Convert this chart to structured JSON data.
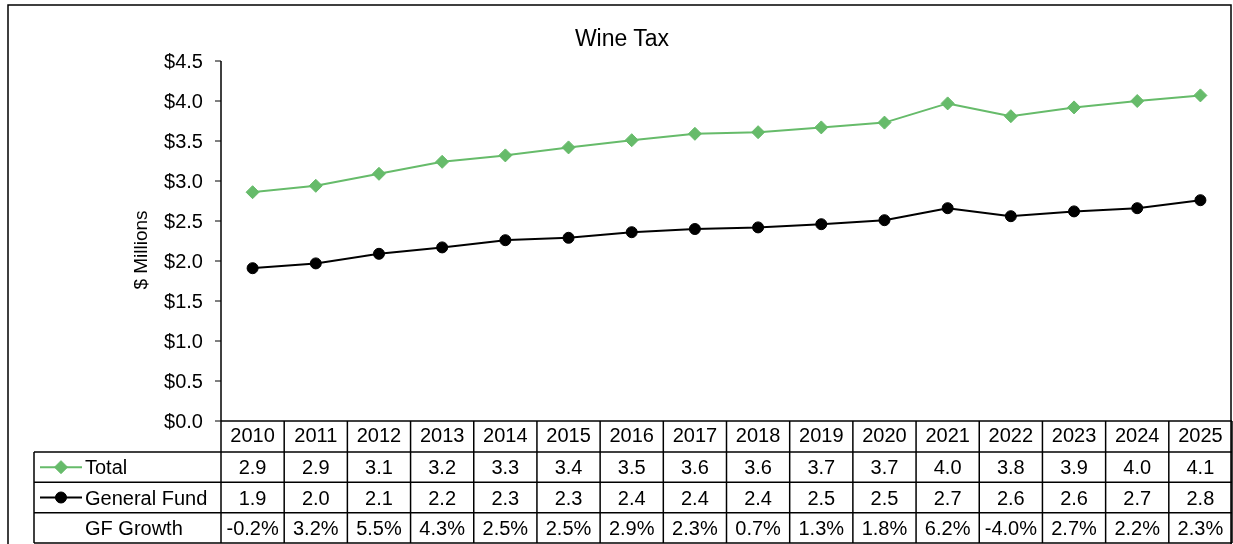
{
  "chart_data": {
    "type": "line",
    "title": "Wine Tax",
    "ylabel": "$ Millions",
    "categories": [
      "2010",
      "2011",
      "2012",
      "2013",
      "2014",
      "2015",
      "2016",
      "2017",
      "2018",
      "2019",
      "2020",
      "2021",
      "2022",
      "2023",
      "2024",
      "2025"
    ],
    "series": [
      {
        "name": "Total",
        "color": "#66bb6a",
        "marker": "diamond",
        "values": [
          2.86,
          2.94,
          3.09,
          3.24,
          3.32,
          3.42,
          3.51,
          3.59,
          3.61,
          3.67,
          3.73,
          3.97,
          3.81,
          3.92,
          4.0,
          4.07
        ],
        "value_labels": [
          "2.9",
          "2.9",
          "3.1",
          "3.2",
          "3.3",
          "3.4",
          "3.5",
          "3.6",
          "3.6",
          "3.7",
          "3.7",
          "4.0",
          "3.8",
          "3.9",
          "4.0",
          "4.1"
        ]
      },
      {
        "name": "General Fund",
        "color": "#000000",
        "marker": "circle",
        "values": [
          1.91,
          1.97,
          2.09,
          2.17,
          2.26,
          2.29,
          2.36,
          2.4,
          2.42,
          2.46,
          2.51,
          2.66,
          2.56,
          2.62,
          2.66,
          2.76
        ],
        "value_labels": [
          "1.9",
          "2.0",
          "2.1",
          "2.2",
          "2.3",
          "2.3",
          "2.4",
          "2.4",
          "2.4",
          "2.5",
          "2.5",
          "2.7",
          "2.6",
          "2.6",
          "2.7",
          "2.8"
        ]
      }
    ],
    "annotations": [
      "GF Growth",
      "-0.2%",
      "3.2%",
      "5.5%",
      "4.3%",
      "2.5%",
      "2.5%",
      "2.9%",
      "2.3%",
      "0.7%",
      "1.3%",
      "1.8%",
      "6.2%",
      "-4.0%",
      "2.7%",
      "2.2%",
      "2.3%"
    ],
    "ylim": [
      0,
      4.5
    ],
    "yticks": [
      {
        "value": 0,
        "label": "$0.0"
      },
      {
        "value": 0.5,
        "label": "$0.5"
      },
      {
        "value": 1,
        "label": "$1.0"
      },
      {
        "value": 1.5,
        "label": "$1.5"
      },
      {
        "value": 2,
        "label": "$2.0"
      },
      {
        "value": 2.5,
        "label": "$2.5"
      },
      {
        "value": 3,
        "label": "$3.0"
      },
      {
        "value": 3.5,
        "label": "$3.5"
      },
      {
        "value": 4,
        "label": "$4.0"
      },
      {
        "value": 4.5,
        "label": "$4.5"
      }
    ],
    "legend": "bottom"
  }
}
